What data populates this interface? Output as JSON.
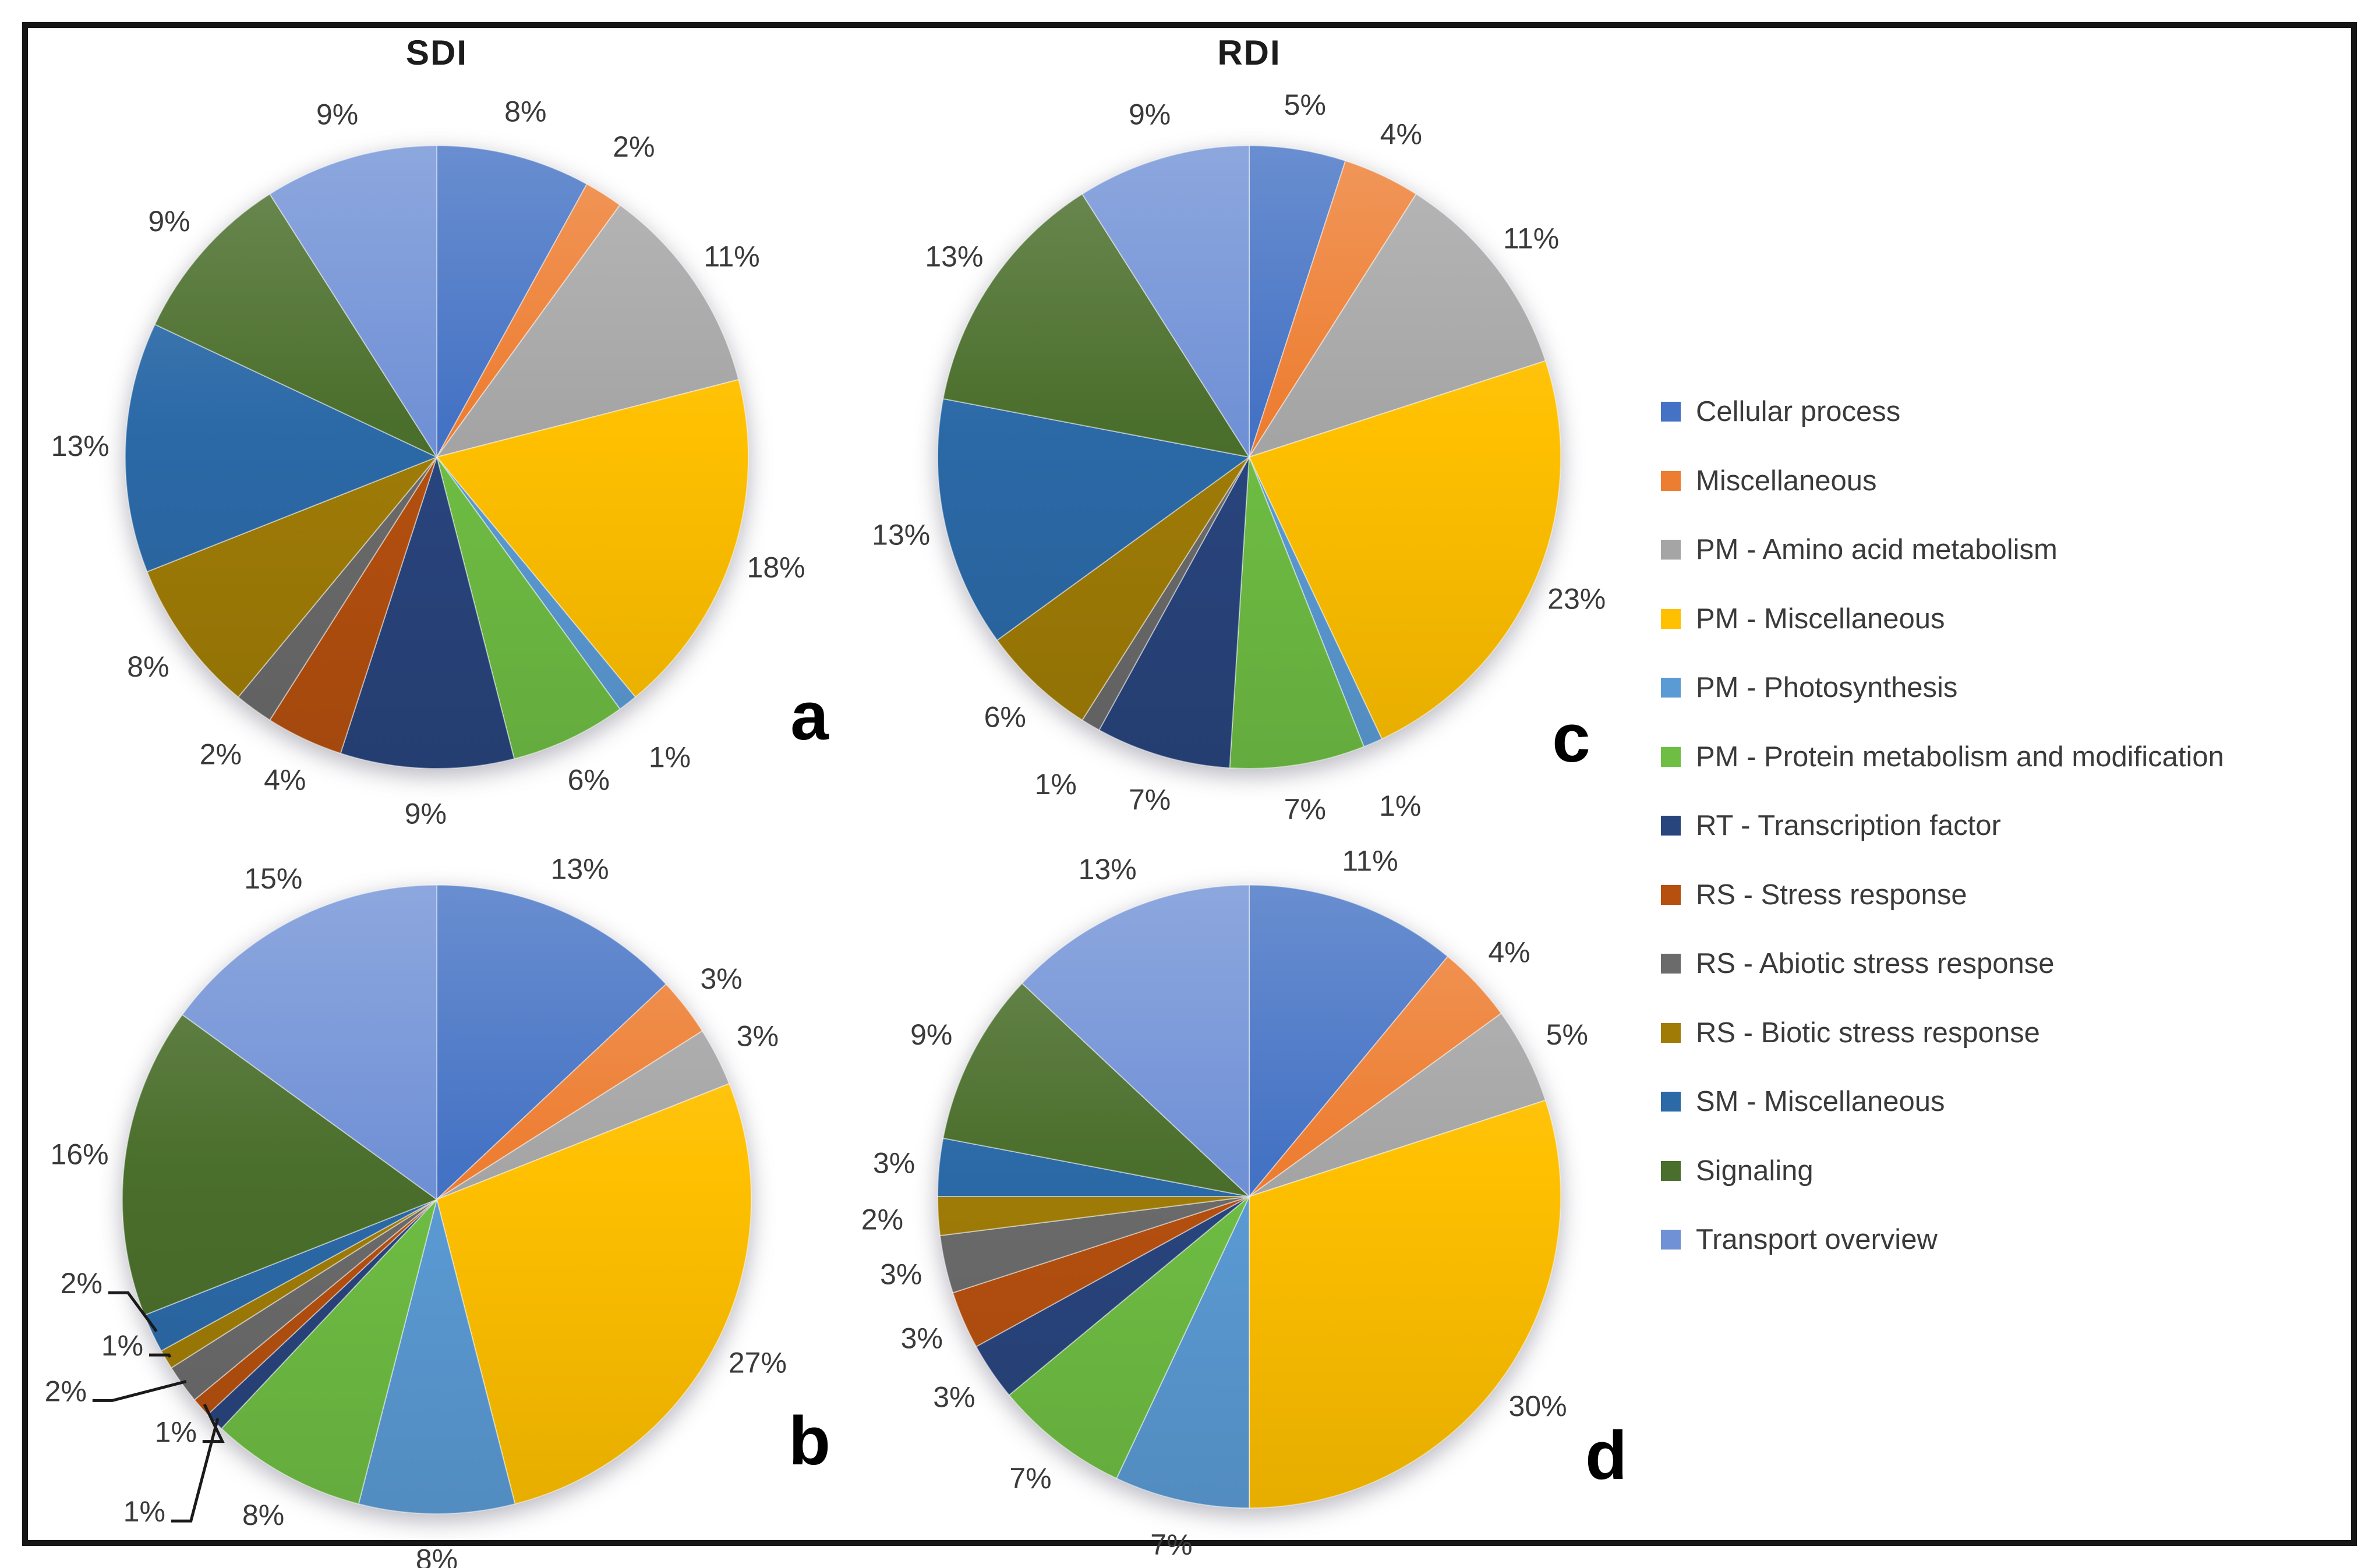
{
  "figure": {
    "left_column_title": "SDI",
    "right_column_title": "RDI",
    "data_label_format": "percent"
  },
  "legend": {
    "position": "right",
    "items": [
      {
        "label": "Cellular process",
        "color": "#4472C4"
      },
      {
        "label": "Miscellaneous",
        "color": "#ED7D31"
      },
      {
        "label": "PM - Amino acid metabolism",
        "color": "#A5A5A5"
      },
      {
        "label": "PM - Miscellaneous",
        "color": "#FFC000"
      },
      {
        "label": "PM - Photosynthesis",
        "color": "#5B9BD5"
      },
      {
        "label": "PM - Protein metabolism and modification",
        "color": "#6FBE44"
      },
      {
        "label": "RT - Transcription factor",
        "color": "#29457E"
      },
      {
        "label": "RS - Stress response",
        "color": "#B5500F"
      },
      {
        "label": "RS - Abiotic stress response",
        "color": "#6B6B6B"
      },
      {
        "label": "RS - Biotic stress response",
        "color": "#A07C07"
      },
      {
        "label": "SM - Miscellaneous",
        "color": "#2B69A7"
      },
      {
        "label": "Signaling",
        "color": "#4A6E2B"
      },
      {
        "label": "Transport overview",
        "color": "#7191D6"
      }
    ]
  },
  "chart_data": [
    {
      "type": "pie",
      "panel_label": "a",
      "title": "SDI",
      "categories": [
        "Cellular process",
        "Miscellaneous",
        "PM - Amino acid metabolism",
        "PM - Miscellaneous",
        "PM - Photosynthesis",
        "PM - Protein metabolism and modification",
        "RT - Transcription factor",
        "RS - Stress response",
        "RS - Abiotic stress response",
        "RS - Biotic stress response",
        "SM - Miscellaneous",
        "Signaling",
        "Transport overview"
      ],
      "values": [
        8,
        2,
        11,
        18,
        1,
        6,
        9,
        4,
        2,
        8,
        13,
        9,
        9
      ],
      "unit": "%"
    },
    {
      "type": "pie",
      "panel_label": "b",
      "title": "",
      "categories": [
        "Cellular process",
        "Miscellaneous",
        "PM - Amino acid metabolism",
        "PM - Miscellaneous",
        "PM - Photosynthesis",
        "PM - Protein metabolism and modification",
        "RT - Transcription factor",
        "RS - Stress response",
        "RS - Abiotic stress response",
        "RS - Biotic stress response",
        "SM - Miscellaneous",
        "Signaling",
        "Transport overview"
      ],
      "values": [
        13,
        3,
        3,
        27,
        8,
        8,
        1,
        1,
        2,
        1,
        2,
        16,
        15
      ],
      "unit": "%"
    },
    {
      "type": "pie",
      "panel_label": "c",
      "title": "RDI",
      "categories": [
        "Cellular process",
        "Miscellaneous",
        "PM - Amino acid metabolism",
        "PM - Miscellaneous",
        "PM - Photosynthesis",
        "PM - Protein metabolism and modification",
        "RT - Transcription factor",
        "RS - Stress response",
        "RS - Abiotic stress response",
        "RS - Biotic stress response",
        "SM - Miscellaneous",
        "Signaling",
        "Transport overview"
      ],
      "values": [
        5,
        4,
        11,
        23,
        1,
        7,
        7,
        0,
        1,
        6,
        13,
        13,
        9
      ],
      "unit": "%"
    },
    {
      "type": "pie",
      "panel_label": "d",
      "title": "",
      "categories": [
        "Cellular process",
        "Miscellaneous",
        "PM - Amino acid metabolism",
        "PM - Miscellaneous",
        "PM - Photosynthesis",
        "PM - Protein metabolism and modification",
        "RT - Transcription factor",
        "RS - Stress response",
        "RS - Abiotic stress response",
        "RS - Biotic stress response",
        "SM - Miscellaneous",
        "Signaling",
        "Transport overview"
      ],
      "values": [
        11,
        4,
        5,
        30,
        7,
        7,
        3,
        3,
        3,
        2,
        3,
        9,
        13
      ],
      "unit": "%"
    }
  ]
}
